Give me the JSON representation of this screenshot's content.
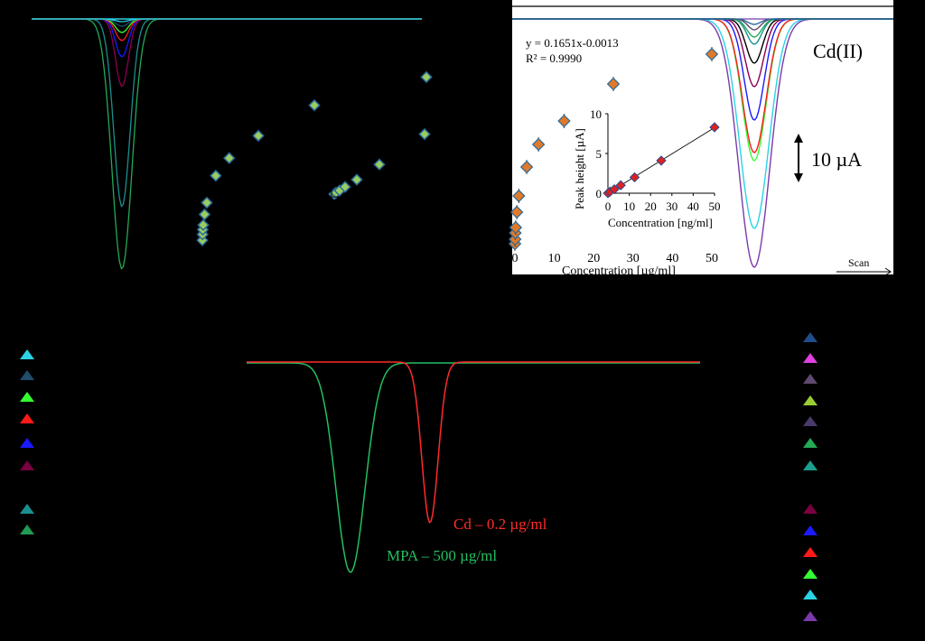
{
  "panel_a": {
    "description_text": "",
    "voltammograms_colors": [
      "#2ad3e6",
      "#1f4d6b",
      "#33ff33",
      "#ff1a1a",
      "#1a1aff",
      "#8b0052",
      "#1b8f8f",
      "#22aa55"
    ]
  },
  "panel_b": {
    "equation": "y = 0.1651x-0.0013",
    "r2": "R² = 0.9990",
    "analyte_label": "Cd(II)",
    "scale_bar_label": "10 µA",
    "scan_label": "Scan",
    "outer_xlabel": "Concentration [µg/ml]",
    "inner_xlabel": "Concentration [ng/ml]",
    "inner_ylabel": "Peak height [µA]"
  },
  "panel_c": {
    "cd_label": "Cd – 0.2 µg/ml",
    "mpa_label": "MPA – 500 µg/ml",
    "cd_color": "#ff2a2a",
    "mpa_color": "#22c060"
  },
  "legend_left_colors": [
    "#2ad3e6",
    "#1f4d6b",
    "#33ff33",
    "#ff1a1a",
    "#1a1aff",
    "#7a0040",
    "#1b8f8f",
    "#229955"
  ],
  "legend_right_colors": [
    "#1f4d8b",
    "#e040e0",
    "#604870",
    "#9acd32",
    "#4a3a6a",
    "#22aa55",
    "#1b9f8f",
    "#7a0040",
    "#1a1aff",
    "#ff1a1a",
    "#33ff33",
    "#2ad3e6",
    "#7a3aaa"
  ],
  "chart_data": [
    {
      "type": "scatter",
      "title": "",
      "xlabel": "Concentration [µg/ml]",
      "ylabel": "",
      "xticks": [
        "0",
        "10",
        "20",
        "30",
        "40",
        "50"
      ],
      "xlim": [
        0,
        50
      ],
      "series": [
        {
          "x": [
            0,
            0.05,
            0.1,
            0.2,
            0.5,
            1,
            3,
            6,
            12.5,
            25,
            50
          ],
          "y": [
            0.3,
            0.8,
            1.2,
            1.6,
            2.5,
            3.5,
            5.8,
            7.3,
            9.2,
            11.8,
            14.2
          ]
        }
      ]
    },
    {
      "type": "scatter",
      "title": "",
      "xlabel": "Concentration [ng/ml]",
      "ylabel": "Peak height [µA]",
      "xticks": [
        "0",
        "10",
        "20",
        "30",
        "40",
        "50"
      ],
      "yticks": [
        "0",
        "5",
        "10"
      ],
      "xlim": [
        0,
        50
      ],
      "ylim": [
        0,
        10
      ],
      "series": [
        {
          "x": [
            0,
            1,
            3,
            6,
            12.5,
            25,
            50
          ],
          "y": [
            0.0,
            0.2,
            0.5,
            1.0,
            2.0,
            4.1,
            8.3
          ]
        }
      ],
      "fit": {
        "slope": 0.1651,
        "intercept": -0.0013
      }
    }
  ]
}
